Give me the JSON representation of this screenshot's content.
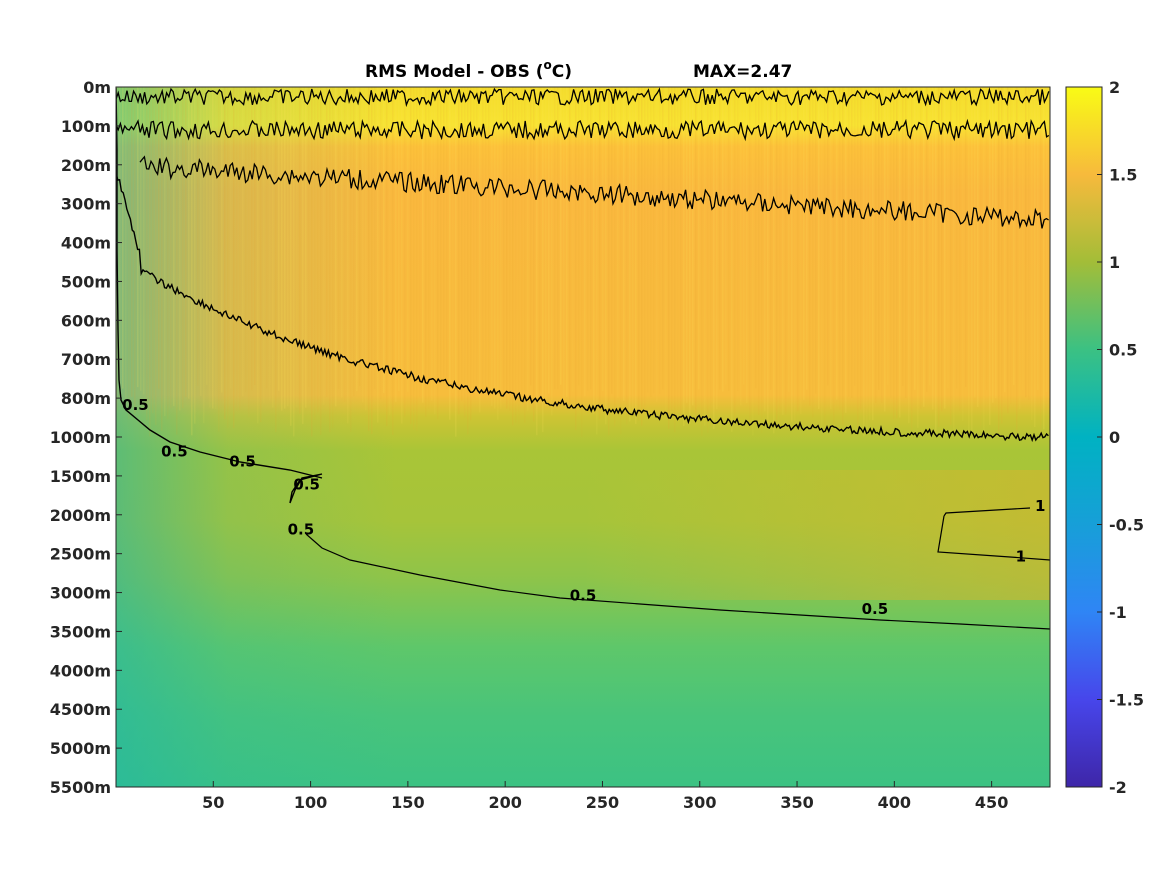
{
  "chart_data": {
    "type": "heatmap",
    "title": "RMS Model - OBS (",
    "title_sup": "o",
    "title_unit": "C)",
    "max_label": "MAX=2.47",
    "x": {
      "range": [
        0,
        480
      ],
      "ticks": [
        50,
        100,
        150,
        200,
        250,
        300,
        350,
        400,
        450
      ],
      "tick_labels": [
        "50",
        "100",
        "150",
        "200",
        "250",
        "300",
        "350",
        "400",
        "450"
      ]
    },
    "y": {
      "tick_labels": [
        "0m",
        "100m",
        "200m",
        "300m",
        "400m",
        "500m",
        "600m",
        "700m",
        "800m",
        "1000m",
        "1500m",
        "2000m",
        "2500m",
        "3000m",
        "3500m",
        "4000m",
        "4500m",
        "5000m",
        "5500m"
      ]
    },
    "colorbar": {
      "range": [
        -2,
        2
      ],
      "ticks": [
        2,
        1.5,
        1,
        0.5,
        0,
        -0.5,
        -1,
        -1.5,
        -2
      ],
      "tick_labels": [
        "2",
        "1.5",
        "1",
        "0.5",
        "0",
        "-0.5",
        "-1",
        "-1.5",
        "-2"
      ],
      "colormap": "parula"
    },
    "contour_levels": [
      0.5,
      1,
      1.5
    ],
    "contour_labels": [
      {
        "text": "0.5",
        "x": 240,
        "level_index": 13.1
      },
      {
        "text": "0.5",
        "x": 390,
        "level_index": 13.45
      },
      {
        "text": "1",
        "x": 465,
        "level_index": 12.1
      },
      {
        "text": "1",
        "x": 475,
        "level_index": 10.8
      },
      {
        "text": "0.5",
        "x": 95,
        "level_index": 11.4
      },
      {
        "text": "0.5",
        "x": 98,
        "level_index": 10.25
      },
      {
        "text": "0.5",
        "x": 65,
        "level_index": 9.65
      },
      {
        "text": "0.5",
        "x": 30,
        "level_index": 9.4
      },
      {
        "text": "0.5",
        "x": 10,
        "level_index": 8.2
      }
    ]
  }
}
